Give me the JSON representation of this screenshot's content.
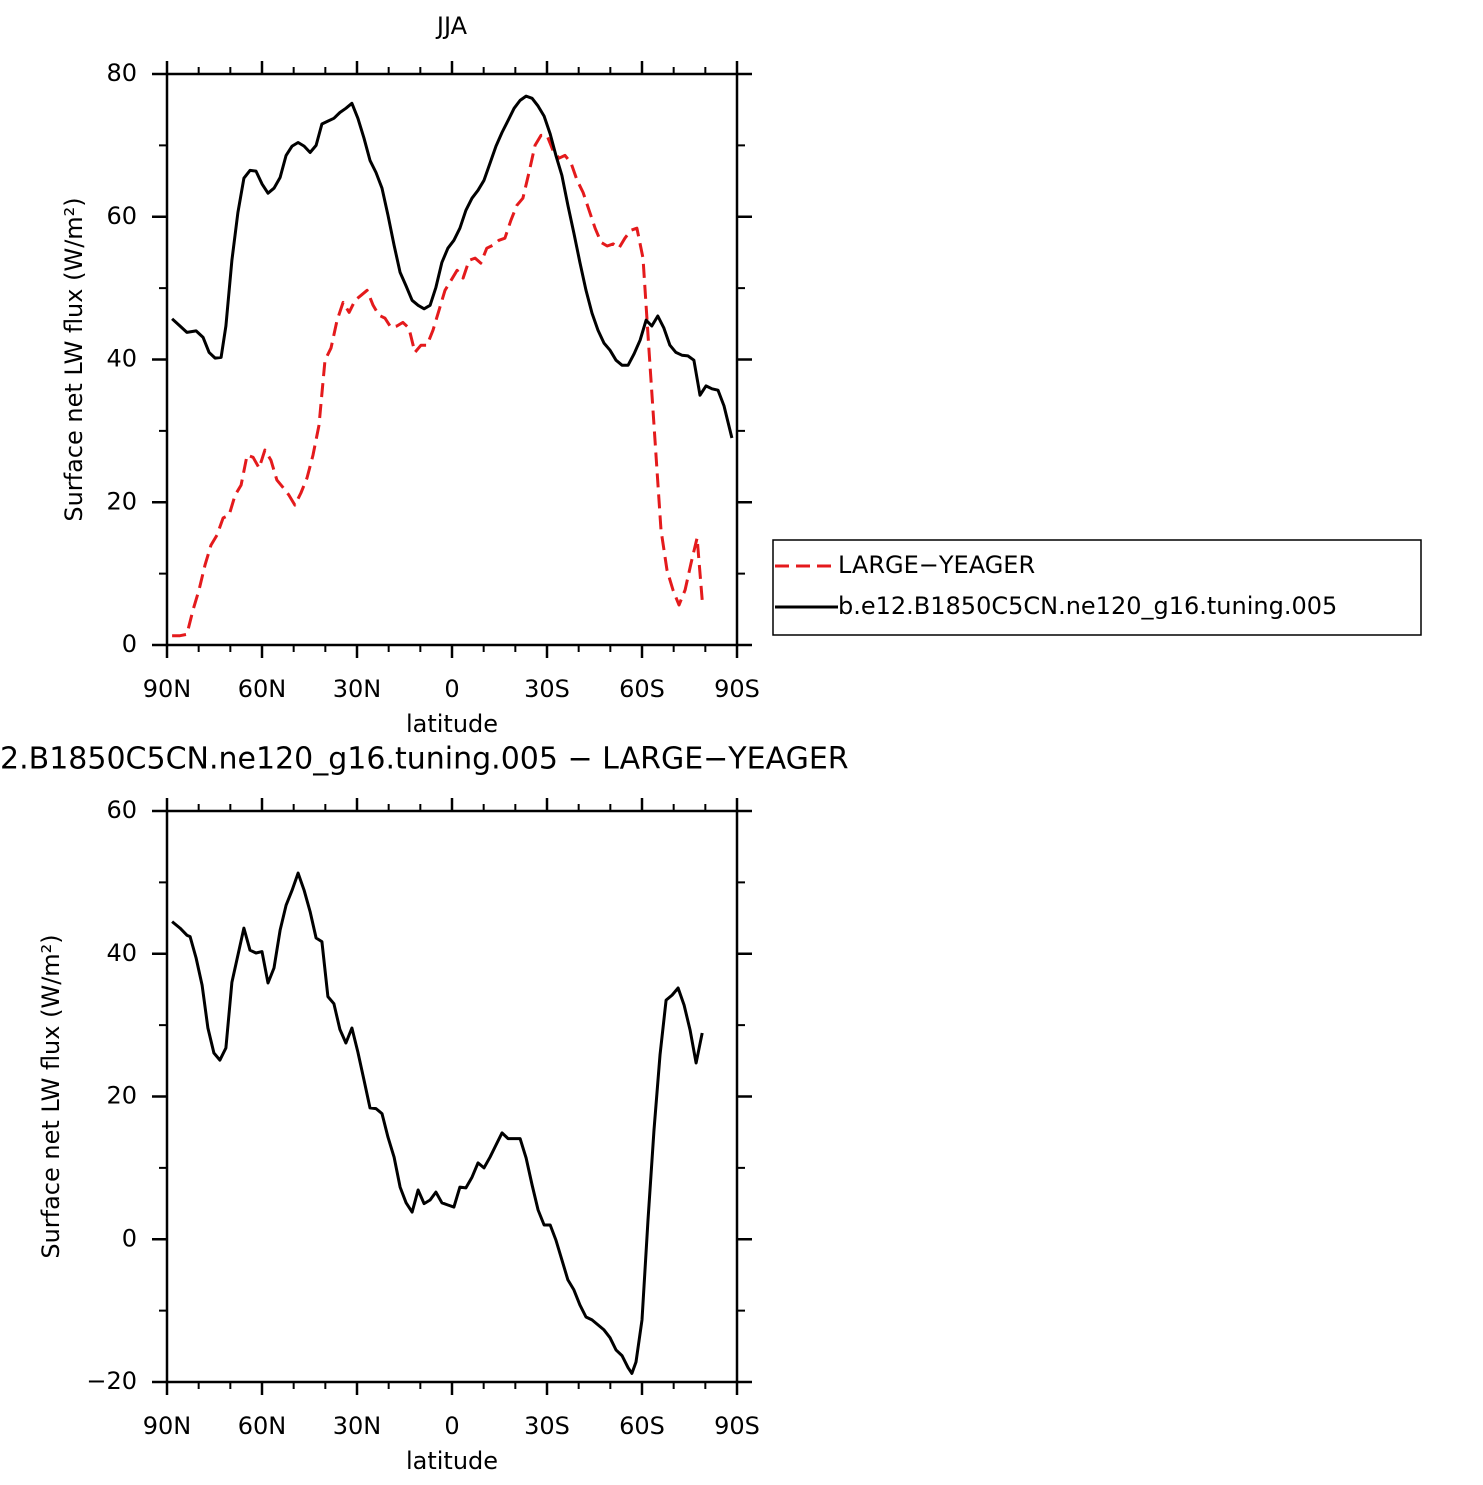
{
  "chart_data": [
    {
      "type": "line",
      "title": "JJA",
      "xlabel": "latitude",
      "ylabel": "Surface net LW flux (W/m²)",
      "xlim": [
        90,
        -90
      ],
      "xticks": [
        {
          "value": 90,
          "label": "90N"
        },
        {
          "value": 60,
          "label": "60N"
        },
        {
          "value": 30,
          "label": "30N"
        },
        0,
        {
          "value": -30,
          "label": "30S"
        },
        {
          "value": -60,
          "label": "60S"
        },
        {
          "value": -90,
          "label": "90S"
        }
      ],
      "ylim": [
        0,
        80
      ],
      "yticks": [
        0,
        20,
        40,
        60,
        80
      ],
      "legend": "right",
      "series": [
        {
          "name": "LARGE−YEAGER",
          "color": "#e41a1c",
          "dash": true,
          "x": [
            88.4,
            85.9,
            83.7,
            81.8,
            79.9,
            78,
            76.1,
            74.2,
            72.3,
            70.4,
            68.5,
            66.6,
            64.7,
            62.8,
            60.9,
            59.1,
            57.2,
            55.3,
            53.4,
            51.5,
            49.6,
            47.7,
            45.8,
            43.9,
            42,
            40.1,
            38.2,
            36.3,
            34.4,
            32.5,
            30.6,
            28.7,
            26.8,
            24.9,
            23.1,
            21.2,
            19.3,
            17.4,
            15.5,
            13.6,
            11.7,
            9.8,
            7.9,
            6,
            4.1,
            2.2,
            0.3,
            -1.6,
            -3.5,
            -5.4,
            -7.3,
            -9.1,
            -11,
            -12.9,
            -14.8,
            -16.7,
            -18.6,
            -20.5,
            -22.4,
            -24.3,
            -26.2,
            -28.1,
            -30,
            -31.9,
            -33.8,
            -35.7,
            -37.6,
            -39.5,
            -41.4,
            -43.3,
            -45.2,
            -47.1,
            -49,
            -50.9,
            -52.7,
            -54.6,
            -56.5,
            -58.4,
            -60.3,
            -62.2,
            -64.1,
            -66,
            -67.9,
            -69.8,
            -71.7,
            -73.6,
            -75.5,
            -77.4,
            -79
          ],
          "values": [
            1.3,
            1.3,
            1.5,
            4.9,
            7.7,
            11.2,
            14,
            15.4,
            17.8,
            18.2,
            21,
            22.4,
            26.6,
            26.3,
            24.8,
            27.3,
            25.9,
            23.1,
            22.1,
            21,
            19.6,
            21.3,
            23.4,
            26.6,
            30.8,
            39.9,
            41.6,
            45.5,
            48,
            46.6,
            48.3,
            49,
            49.7,
            47.6,
            46.2,
            45.8,
            44.5,
            44.7,
            45.2,
            44.4,
            41,
            42,
            42,
            44.1,
            46.9,
            49.7,
            51.1,
            52.5,
            51.4,
            53.9,
            54.2,
            53.5,
            55.6,
            56,
            56.7,
            57,
            59.5,
            61.6,
            62.6,
            66.2,
            70,
            71.4,
            71.4,
            69.3,
            68.2,
            68.6,
            67.5,
            65.1,
            63.4,
            60.9,
            58.4,
            56.4,
            55.9,
            56.2,
            55.6,
            57,
            58.1,
            58.4,
            54.2,
            41.3,
            28.7,
            16.1,
            10.5,
            7.7,
            5.6,
            7.7,
            11.5,
            15,
            6.3
          ]
        },
        {
          "name": "b.e12.B1850C5CN.ne120_g16.tuning.005",
          "color": "#000000",
          "dash": false,
          "x": [
            88.4,
            85.9,
            83.7,
            80.8,
            78.6,
            76.7,
            74.8,
            72.9,
            71.4,
            69.5,
            67.6,
            65.7,
            63.8,
            61.9,
            60,
            58.1,
            56.2,
            54.3,
            52.4,
            50.5,
            48.6,
            46.7,
            44.8,
            42.9,
            41.1,
            39.2,
            37.3,
            35.4,
            33.5,
            31.6,
            29.7,
            27.8,
            25.9,
            24,
            22.1,
            20.2,
            18.3,
            16.4,
            14.5,
            12.6,
            10.7,
            8.8,
            6.9,
            5.1,
            3.2,
            1.3,
            -0.6,
            -2.5,
            -4.4,
            -6.3,
            -8.2,
            -10.1,
            -12,
            -13.9,
            -15.8,
            -17.7,
            -19.6,
            -21.5,
            -23.4,
            -25.3,
            -27.2,
            -29.1,
            -31,
            -32.8,
            -34.7,
            -36.6,
            -38.5,
            -40.4,
            -42.3,
            -44.2,
            -46.1,
            -48,
            -49.9,
            -51.8,
            -53.7,
            -55.6,
            -57.5,
            -59.4,
            -61.3,
            -63.1,
            -65,
            -66.9,
            -68.8,
            -70.7,
            -72.6,
            -74.5,
            -76.4,
            -78.3,
            -80.2,
            -82.1,
            -84,
            -85.9,
            -88.4
          ],
          "values": [
            45.7,
            44.7,
            43.8,
            44,
            43.1,
            41,
            40.2,
            40.3,
            44.7,
            53.9,
            60.6,
            65.4,
            66.5,
            66.4,
            64.6,
            63.3,
            64,
            65.5,
            68.6,
            69.9,
            70.4,
            69.9,
            69,
            70,
            73,
            73.4,
            73.8,
            74.6,
            75.2,
            75.9,
            73.8,
            71,
            67.9,
            66.2,
            64,
            60.2,
            56,
            52.2,
            50.3,
            48.3,
            47.6,
            47.1,
            47.6,
            50.1,
            53.6,
            55.6,
            56.7,
            58.4,
            60.9,
            62.6,
            63.7,
            65.1,
            67.5,
            69.9,
            71.8,
            73.5,
            75.2,
            76.3,
            76.9,
            76.6,
            75.5,
            74.1,
            71.6,
            68.6,
            65.8,
            61.6,
            57.7,
            53.6,
            49.7,
            46.5,
            44.1,
            42.3,
            41.3,
            39.9,
            39.2,
            39.2,
            40.8,
            42.7,
            45.5,
            44.7,
            46.1,
            44.4,
            42,
            41,
            40.6,
            40.5,
            39.9,
            35,
            36.3,
            35.9,
            35.7,
            33.5,
            29
          ]
        }
      ]
    },
    {
      "type": "line",
      "title": "2.B1850C5CN.ne120_g16.tuning.005 − LARGE−YEAGER",
      "xlabel": "latitude",
      "ylabel": "Surface net LW flux (W/m²)",
      "xlim": [
        90,
        -90
      ],
      "xticks": [
        {
          "value": 90,
          "label": "90N"
        },
        {
          "value": 60,
          "label": "60N"
        },
        {
          "value": 30,
          "label": "30N"
        },
        0,
        {
          "value": -30,
          "label": "30S"
        },
        {
          "value": -60,
          "label": "60S"
        },
        {
          "value": -90,
          "label": "90S"
        }
      ],
      "ylim": [
        -20,
        60
      ],
      "yticks": [
        {
          "value": -20,
          "label": "−20"
        },
        0,
        20,
        40,
        60
      ],
      "series": [
        {
          "color": "#000000",
          "dash": false,
          "x": [
            88.4,
            85.9,
            83.7,
            82.7,
            80.8,
            78.9,
            77.1,
            75.2,
            73.3,
            71.4,
            69.5,
            67.6,
            65.7,
            63.8,
            61.9,
            60,
            58.1,
            56.2,
            54.3,
            52.4,
            50.5,
            48.6,
            46.7,
            44.8,
            42.9,
            41.1,
            39.2,
            37.3,
            35.4,
            33.5,
            31.6,
            29.7,
            27.8,
            25.9,
            24,
            22.1,
            20.2,
            18.3,
            16.4,
            14.5,
            12.6,
            10.7,
            8.8,
            6.9,
            5.1,
            3.2,
            1.3,
            -0.6,
            -2.5,
            -4.4,
            -6.3,
            -8.2,
            -10.1,
            -12,
            -13.9,
            -15.8,
            -17.7,
            -19.6,
            -21.5,
            -23.4,
            -25.3,
            -27.2,
            -29.1,
            -31,
            -32.8,
            -34.7,
            -36.6,
            -38.5,
            -40.4,
            -42.3,
            -44.2,
            -46.1,
            -48,
            -49.9,
            -51.8,
            -53.7,
            -55.6,
            -56.8,
            -58.1,
            -60,
            -61.9,
            -63.8,
            -65.7,
            -67.6,
            -69.5,
            -71.4,
            -73.3,
            -75.2,
            -77.1,
            -79
          ],
          "values": [
            44.5,
            43.6,
            42.6,
            42.4,
            39.4,
            35.6,
            29.6,
            26.1,
            25.1,
            26.8,
            36,
            39.8,
            43.6,
            40.5,
            40.1,
            40.3,
            35.9,
            38,
            43.3,
            46.8,
            48.9,
            51.3,
            48.9,
            45.9,
            42.2,
            41.7,
            34,
            33,
            29.4,
            27.5,
            29.6,
            26.2,
            22.3,
            18.4,
            18.3,
            17.6,
            14.3,
            11.5,
            7.3,
            5.1,
            3.8,
            6.9,
            5,
            5.5,
            6.6,
            5.1,
            4.8,
            4.5,
            7.3,
            7.2,
            8.7,
            10.7,
            10,
            11.5,
            13.2,
            14.9,
            14.1,
            14.1,
            14.1,
            11.4,
            7.6,
            4.1,
            2,
            2,
            -0.1,
            -2.9,
            -5.7,
            -7.1,
            -9.2,
            -10.9,
            -11.3,
            -12,
            -12.7,
            -13.8,
            -15.5,
            -16.3,
            -18,
            -18.8,
            -17.2,
            -11.3,
            2.7,
            15.3,
            25.8,
            33.5,
            34.2,
            35.2,
            32.8,
            29.3,
            24.7,
            28.9
          ]
        }
      ]
    }
  ]
}
